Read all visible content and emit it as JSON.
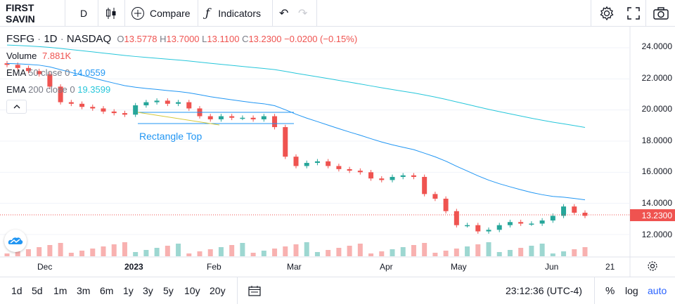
{
  "toolbar": {
    "symbol": "FIRST SAVIN",
    "interval": "D",
    "compare_label": "Compare",
    "indicators_label": "Indicators"
  },
  "legend": {
    "ticker": "FSFG",
    "interval": "1D",
    "exchange": "NASDAQ",
    "o_label": "O",
    "o": "13.5778",
    "h_label": "H",
    "h": "13.7000",
    "l_label": "L",
    "l": "13.1100",
    "c_label": "C",
    "c": "13.2300",
    "change": "−0.0200 (−0.15%)",
    "volume_label": "Volume",
    "volume": "7.881K",
    "ema50_label": "EMA",
    "ema50_params": "50 close 0",
    "ema50": "14.0559",
    "ema200_label": "EMA",
    "ema200_params": "200 close 0",
    "ema200": "19.3599"
  },
  "annotation": "Rectangle Top",
  "price_axis": [
    "24.0000",
    "22.0000",
    "20.0000",
    "18.0000",
    "16.0000",
    "14.0000",
    "12.0000"
  ],
  "last_price": "13.2300",
  "date_axis": [
    "Dec",
    "2023",
    "Feb",
    "Mar",
    "Apr",
    "May",
    "Jun",
    "21"
  ],
  "ranges": [
    "1d",
    "5d",
    "1m",
    "3m",
    "6m",
    "1y",
    "3y",
    "5y",
    "10y",
    "20y"
  ],
  "clock": "23:12:36 (UTC-4)",
  "scale_options": {
    "percent": "%",
    "log": "log",
    "auto": "auto"
  },
  "colors": {
    "up": "#26a69a",
    "down": "#ef5350",
    "ema50": "#2196f3",
    "ema200": "#26c6da",
    "accent": "#2962ff"
  },
  "chart_data": {
    "type": "candlestick",
    "ylim": [
      11.0,
      25.0
    ],
    "dates_sample": [
      "Dec",
      "2023",
      "Feb",
      "Mar",
      "Apr",
      "May",
      "Jun"
    ],
    "close_series": [
      22.9,
      22.7,
      22.5,
      22.3,
      21.5,
      20.5,
      20.4,
      20.2,
      20.1,
      19.9,
      19.8,
      19.7,
      20.3,
      20.5,
      20.6,
      20.4,
      20.5,
      20.1,
      19.6,
      19.4,
      19.6,
      19.5,
      19.5,
      19.4,
      19.6,
      18.9,
      17.0,
      16.4,
      16.6,
      16.7,
      16.4,
      16.2,
      16.1,
      16.0,
      15.6,
      15.5,
      15.7,
      15.8,
      15.7,
      14.6,
      14.3,
      13.5,
      12.6,
      12.6,
      12.2,
      12.3,
      12.6,
      12.8,
      12.7,
      12.7,
      12.9,
      13.2,
      13.8,
      13.4,
      13.2
    ],
    "ema50_end": 14.0559,
    "ema200_end": 19.3599
  }
}
